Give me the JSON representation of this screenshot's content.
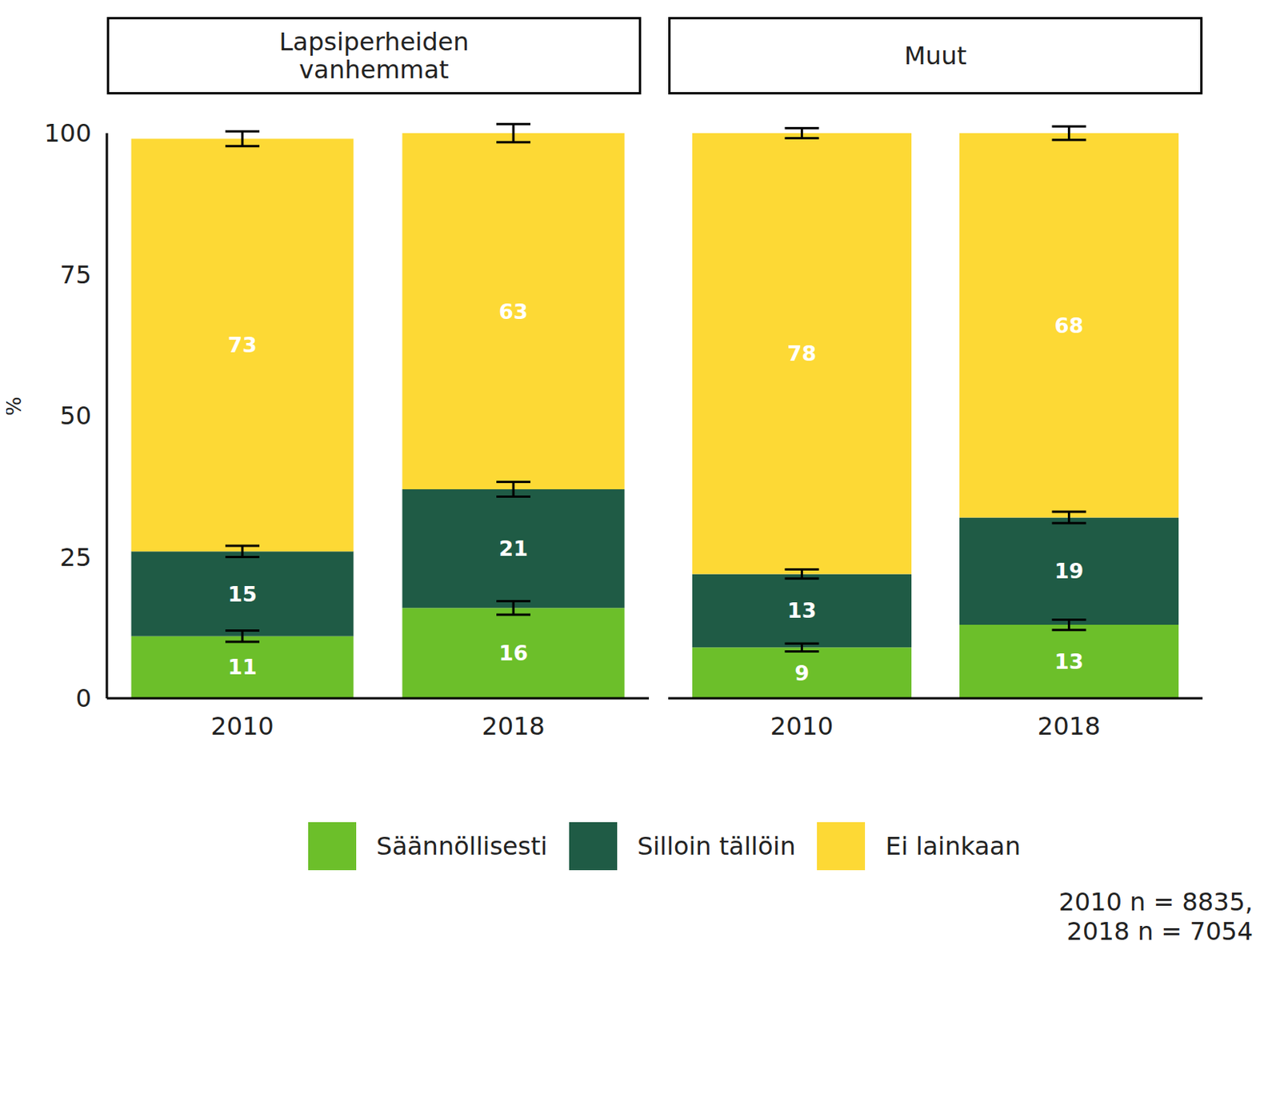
{
  "chart_data": {
    "type": "bar",
    "stacked": true,
    "data_labels": true,
    "legend": "bottom",
    "ylabel": "%",
    "ylim": [
      0,
      100
    ],
    "yticks": [
      0,
      25,
      50,
      75,
      100
    ],
    "categories": [
      "2010",
      "2018"
    ],
    "panels": [
      {
        "title": "Lapsiperheiden vanhemmat",
        "series": [
          {
            "name": "Säännöllisesti",
            "color": "#6cbf2a",
            "values": [
              11,
              16
            ],
            "errors": [
              1,
              1.2
            ]
          },
          {
            "name": "Silloin tällöin",
            "color": "#1f5b45",
            "values": [
              15,
              21
            ],
            "errors": [
              1,
              1.3
            ]
          },
          {
            "name": "Ei lainkaan",
            "color": "#fdd935",
            "values": [
              73,
              63
            ],
            "errors": [
              1.3,
              1.6
            ]
          }
        ]
      },
      {
        "title": "Muut",
        "series": [
          {
            "name": "Säännöllisesti",
            "color": "#6cbf2a",
            "values": [
              9,
              13
            ],
            "errors": [
              0.7,
              0.9
            ]
          },
          {
            "name": "Silloin tällöin",
            "color": "#1f5b45",
            "values": [
              13,
              19
            ],
            "errors": [
              0.8,
              1
            ]
          },
          {
            "name": "Ei lainkaan",
            "color": "#fdd935",
            "values": [
              78,
              68
            ],
            "errors": [
              0.9,
              1.2
            ]
          }
        ]
      }
    ],
    "note": "2010 n = 8835,\n2018 n = 7054"
  }
}
